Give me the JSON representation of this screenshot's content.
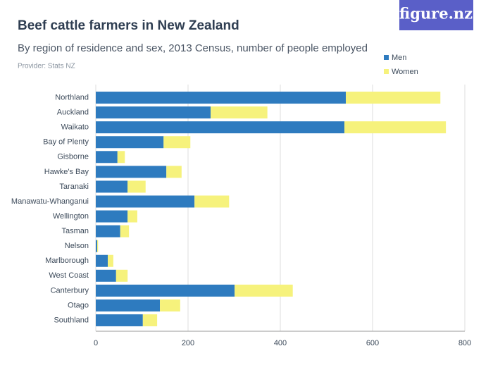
{
  "chart_data": {
    "type": "stacked-bar-horizontal",
    "title": "Beef cattle farmers in New Zealand",
    "subtitle": "By region of residence and sex, 2013 Census, number of people employed",
    "provider": "Provider: Stats NZ",
    "logo": "figure.nz",
    "categories": [
      "Northland",
      "Auckland",
      "Waikato",
      "Bay of Plenty",
      "Gisborne",
      "Hawke's Bay",
      "Taranaki",
      "Manawatu-Whanganui",
      "Wellington",
      "Tasman",
      "Nelson",
      "Marlborough",
      "West Coast",
      "Canterbury",
      "Otago",
      "Southland"
    ],
    "series": [
      {
        "name": "Men",
        "color": "#2e7bbf",
        "values": [
          542,
          249,
          539,
          147,
          47,
          153,
          69,
          214,
          69,
          53,
          3,
          26,
          44,
          301,
          139,
          102
        ]
      },
      {
        "name": "Women",
        "color": "#f6f27c",
        "values": [
          205,
          123,
          220,
          58,
          16,
          33,
          39,
          75,
          21,
          19,
          2,
          12,
          25,
          126,
          44,
          31
        ]
      }
    ],
    "xlim": [
      0,
      800
    ],
    "xticks": [
      0,
      200,
      400,
      600,
      800
    ],
    "grid": true
  }
}
